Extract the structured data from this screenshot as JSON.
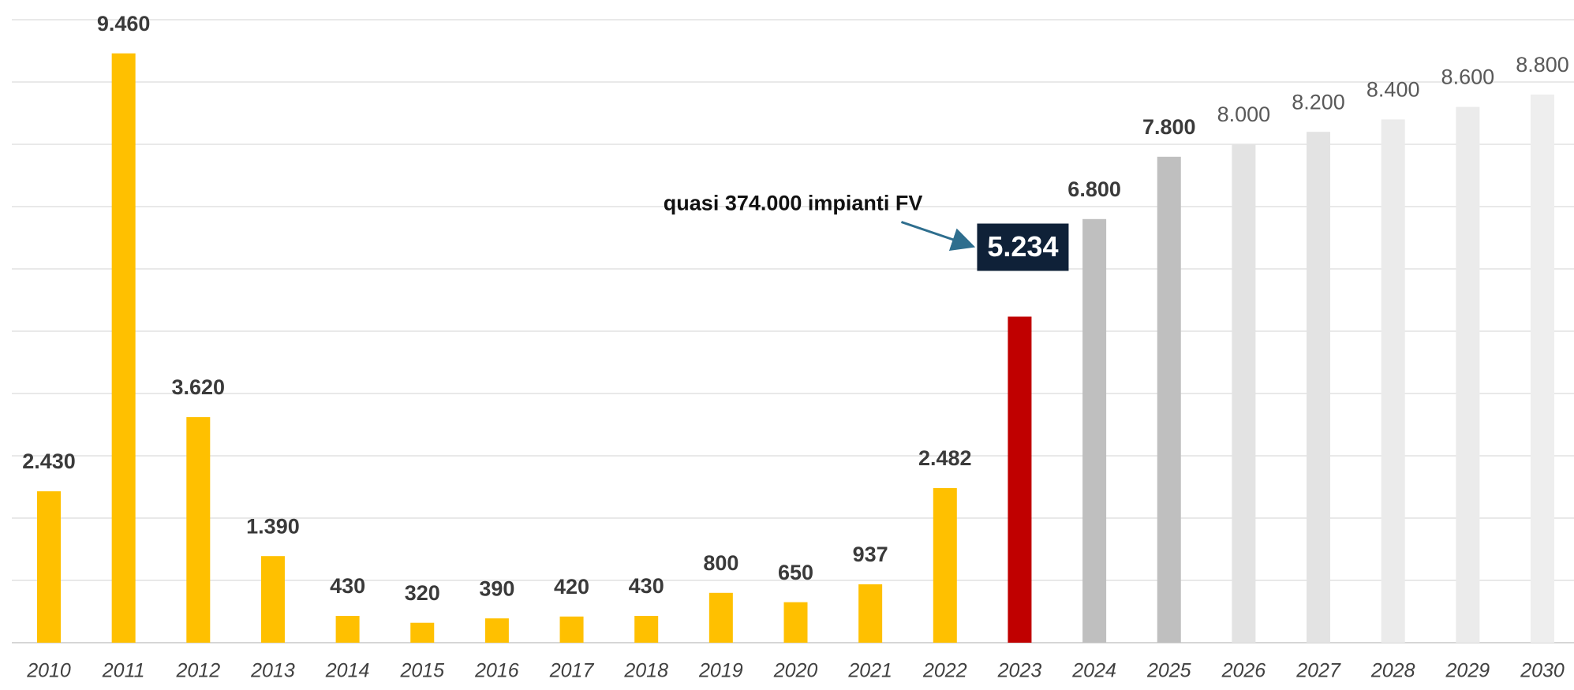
{
  "chart_data": {
    "type": "bar",
    "categories": [
      "2010",
      "2011",
      "2012",
      "2013",
      "2014",
      "2015",
      "2016",
      "2017",
      "2018",
      "2019",
      "2020",
      "2021",
      "2022",
      "2023",
      "2024",
      "2025",
      "2026",
      "2027",
      "2028",
      "2029",
      "2030"
    ],
    "values": [
      2430,
      9460,
      3620,
      1390,
      430,
      320,
      390,
      420,
      430,
      800,
      650,
      937,
      2482,
      5234,
      6800,
      7800,
      8000,
      8200,
      8400,
      8600,
      8800
    ],
    "value_labels": [
      "2.430",
      "9.460",
      "3.620",
      "1.390",
      "430",
      "320",
      "390",
      "420",
      "430",
      "800",
      "650",
      "937",
      "2.482",
      "5.234",
      "6.800",
      "7.800",
      "8.000",
      "8.200",
      "8.400",
      "8.600",
      "8.800"
    ],
    "colors": [
      "#FFC000",
      "#FFC000",
      "#FFC000",
      "#FFC000",
      "#FFC000",
      "#FFC000",
      "#FFC000",
      "#FFC000",
      "#FFC000",
      "#FFC000",
      "#FFC000",
      "#FFC000",
      "#FFC000",
      "#C00000",
      "#BFBFBF",
      "#BFBFBF",
      "#E3E3E3",
      "#E3E3E3",
      "#EBEBEB",
      "#EBEBEB",
      "#EEEEEE"
    ],
    "ylim": [
      0,
      10000
    ],
    "yticks": [
      0,
      1000,
      2000,
      3000,
      4000,
      5000,
      6000,
      7000,
      8000,
      9000,
      10000
    ],
    "grid": true,
    "annotation": {
      "text": "quasi 374.000 impianti FV",
      "category": "2023"
    }
  }
}
